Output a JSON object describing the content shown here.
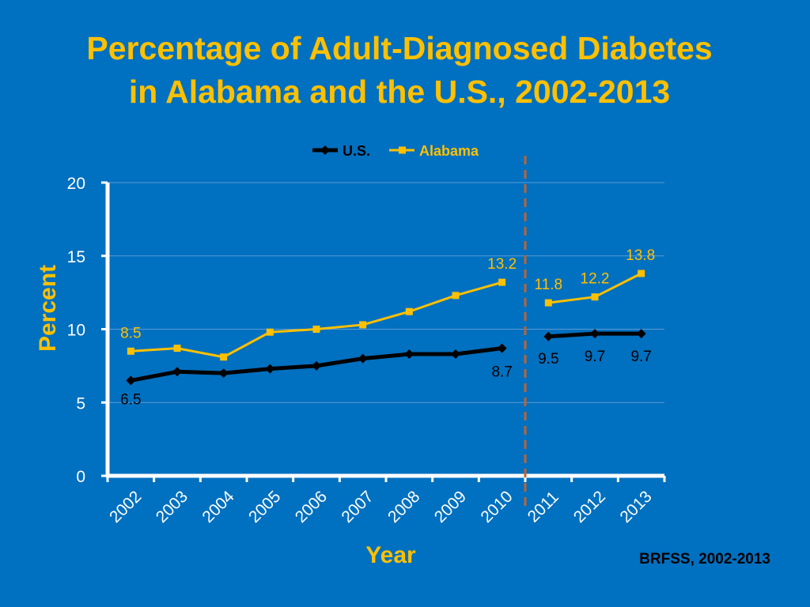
{
  "title_lines": [
    "Percentage of Adult-Diagnosed Diabetes",
    "in Alabama and the U.S., 2002-2013"
  ],
  "source": "BRFSS, 2002-2013",
  "colors": {
    "background": "#0070C0",
    "title": "#FFC000",
    "us_series": "#000000",
    "alabama_series": "#FFC000",
    "axis": "#FFFFFF",
    "grid": "#5B9BD5",
    "divider": "#C0622F"
  },
  "chart_data": {
    "type": "line",
    "title": "Percentage of Adult-Diagnosed Diabetes in Alabama and the U.S., 2002-2013",
    "xlabel": "Year",
    "ylabel": "Percent",
    "categories": [
      "2002",
      "2003",
      "2004",
      "2005",
      "2006",
      "2007",
      "2008",
      "2009",
      "2010",
      "2011",
      "2012",
      "2013"
    ],
    "ylim": [
      0,
      20
    ],
    "yticks": [
      0,
      5,
      10,
      15,
      20
    ],
    "grid": true,
    "legend_position": "top-center",
    "break_after_category": "2010",
    "series": [
      {
        "name": "U.S.",
        "marker": "diamond",
        "values": [
          6.5,
          7.1,
          7.0,
          7.3,
          7.5,
          8.0,
          8.3,
          8.3,
          8.7,
          9.5,
          9.7,
          9.7
        ],
        "labels": {
          "2002": "6.5",
          "2010": "8.7",
          "2011": "9.5",
          "2012": "9.7",
          "2013": "9.7"
        }
      },
      {
        "name": "Alabama",
        "marker": "square",
        "values": [
          8.5,
          8.7,
          8.1,
          9.8,
          10.0,
          10.3,
          11.2,
          12.3,
          13.2,
          11.8,
          12.2,
          13.8
        ],
        "labels": {
          "2002": "8.5",
          "2010": "13.2",
          "2011": "11.8",
          "2012": "12.2",
          "2013": "13.8"
        }
      }
    ]
  }
}
